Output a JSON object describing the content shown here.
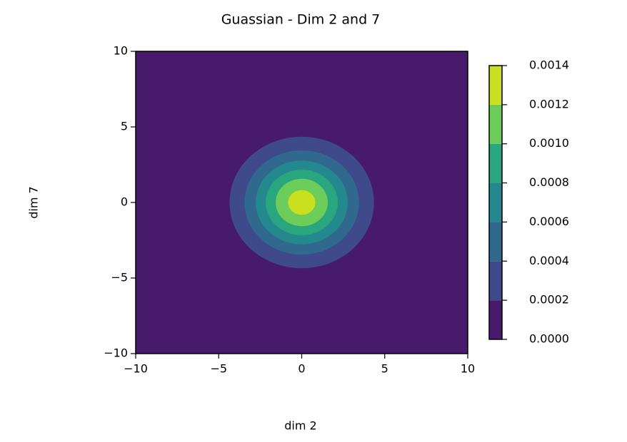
{
  "chart_data": {
    "type": "contour",
    "title": "Guassian - Dim 2 and 7",
    "xlabel": "dim 2",
    "ylabel": "dim 7",
    "xlim": [
      -10,
      10
    ],
    "ylim": [
      -10,
      10
    ],
    "xticks": [
      {
        "value": -10,
        "label": "−10"
      },
      {
        "value": -5,
        "label": "−5"
      },
      0,
      5,
      10
    ],
    "yticks": [
      {
        "value": -10,
        "label": "−10"
      },
      {
        "value": -5,
        "label": "−5"
      },
      0,
      5,
      10
    ],
    "center": {
      "x": 0,
      "y": 0
    },
    "cticks": [
      {
        "value": 0,
        "label": "0.0000"
      },
      0.0002,
      0.0004,
      0.0006,
      0.0008,
      {
        "value": 0.001,
        "label": "0.0010"
      },
      0.0012,
      0.0014
    ],
    "colors": [
      "#481a6c",
      "#3e4a89",
      "#30688e",
      "#23898e",
      "#2aa67f",
      "#6ccd5a",
      "#c8e020"
    ],
    "contours": [
      {
        "level": 0.0002,
        "radius": 4.35
      },
      {
        "level": 0.0004,
        "radius": 3.45
      },
      {
        "level": 0.0006,
        "radius": 2.77
      },
      {
        "level": 0.0008,
        "radius": 2.17
      },
      {
        "level": 0.001,
        "radius": 1.57
      },
      {
        "level": 0.0012,
        "radius": 0.82
      }
    ]
  }
}
